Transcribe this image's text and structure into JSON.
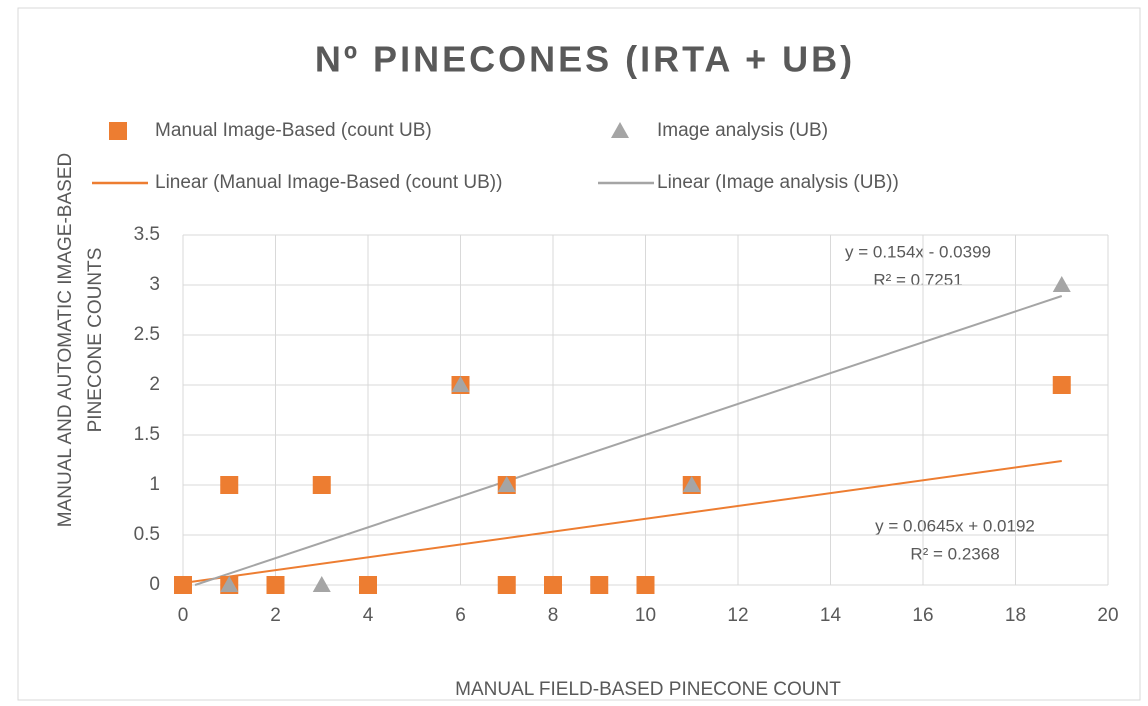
{
  "chart_data": {
    "type": "scatter",
    "title": "Nº  PINECONES (IRTA + UB)",
    "x_label": "MANUAL FIELD-BASED PINECONE COUNT",
    "y_label": [
      "MANUAL AND AUTOMATIC IMAGE-BASED",
      "PINECONE COUNTS"
    ],
    "xlim": [
      0,
      20
    ],
    "xticks": [
      0,
      2,
      4,
      6,
      8,
      10,
      12,
      14,
      16,
      18,
      20
    ],
    "ylim": [
      0,
      3.5
    ],
    "yticks": [
      0,
      0.5,
      1,
      1.5,
      2,
      2.5,
      3,
      3.5
    ],
    "grid": true,
    "legend": "top",
    "series": [
      {
        "name": "Manual Image-Based (count UB)",
        "color": "#ed7d31",
        "marker": "square",
        "x": [
          0,
          1,
          1,
          2,
          3,
          4,
          6,
          7,
          7,
          8,
          9,
          10,
          11,
          19
        ],
        "values": [
          0,
          1,
          0,
          0,
          1,
          0,
          2,
          1,
          0,
          0,
          0,
          0,
          1,
          2
        ]
      },
      {
        "name": "Image analysis (UB)",
        "color": "#a5a5a5",
        "marker": "triangle",
        "x": [
          1,
          3,
          6,
          7,
          11,
          19
        ],
        "values": [
          0,
          0,
          2,
          1,
          1,
          3
        ]
      },
      {
        "name": "Linear (Manual Image-Based (count UB))",
        "color": "#ed7d31",
        "marker": "line",
        "x": [
          0,
          19
        ],
        "values": [
          0.02,
          1.24
        ]
      },
      {
        "name": "Linear (Image analysis (UB))",
        "color": "#a5a5a5",
        "marker": "line",
        "x": [
          0.26,
          19
        ],
        "values": [
          0,
          2.89
        ]
      }
    ],
    "annotations": [
      "y = 0.154x - 0.0399",
      "R² = 0.7251",
      "y = 0.0645x + 0.0192",
      "R² = 0.2368"
    ]
  }
}
